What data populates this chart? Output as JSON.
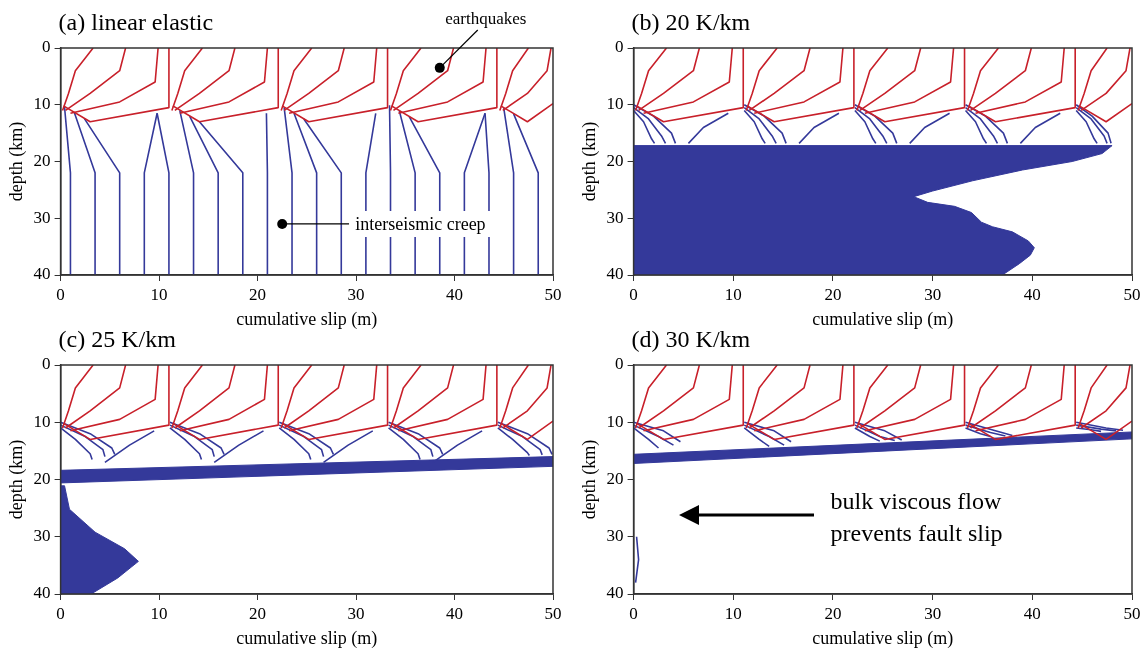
{
  "chart_data": [
    {
      "type": "line",
      "title": "(a) linear elastic",
      "xlabel": "cumulative slip (m)",
      "ylabel": "depth (km)",
      "xlim": [
        0,
        50
      ],
      "ylim": [
        40,
        0
      ],
      "xticks": [
        0,
        10,
        20,
        30,
        40,
        50
      ],
      "yticks": [
        0,
        10,
        20,
        30,
        40
      ],
      "grid": false,
      "legend": false,
      "marker": "none",
      "annotations": [
        {
          "text": "earthquakes",
          "x": 38.5,
          "y": 3.5
        },
        {
          "text": "interseismic creep",
          "x": 22.5,
          "y": 31
        }
      ],
      "series": [
        {
          "color": "#34399a",
          "x": [
            1,
            1,
            0.4
          ],
          "values": [
            40,
            22,
            10.4
          ]
        },
        {
          "color": "#34399a",
          "x": [
            3.5,
            3.5,
            1.4
          ],
          "values": [
            40,
            22,
            11.4
          ]
        },
        {
          "color": "#34399a",
          "x": [
            6,
            6,
            2.4
          ],
          "values": [
            40,
            22,
            12.4
          ]
        },
        {
          "color": "#34399a",
          "x": [
            8.5,
            8.5,
            9.8
          ],
          "values": [
            40,
            22,
            11.5
          ]
        },
        {
          "color": "#34399a",
          "x": [
            11,
            11,
            9.8
          ],
          "values": [
            40,
            22,
            11.5
          ]
        },
        {
          "color": "#34399a",
          "x": [
            13.5,
            13.5,
            12.1
          ],
          "values": [
            40,
            22,
            11
          ]
        },
        {
          "color": "#34399a",
          "x": [
            16,
            16,
            13.1
          ],
          "values": [
            40,
            22,
            12
          ]
        },
        {
          "color": "#34399a",
          "x": [
            18.5,
            18.5,
            14.1
          ],
          "values": [
            40,
            22,
            13
          ]
        },
        {
          "color": "#34399a",
          "x": [
            21,
            21,
            20.9
          ],
          "values": [
            40,
            22,
            11.5
          ]
        },
        {
          "color": "#34399a",
          "x": [
            23.5,
            23.5,
            22.7
          ],
          "values": [
            40,
            22,
            10.5
          ]
        },
        {
          "color": "#34399a",
          "x": [
            26,
            26,
            23.7
          ],
          "values": [
            40,
            22,
            11.5
          ]
        },
        {
          "color": "#34399a",
          "x": [
            28.5,
            28.5,
            24.7
          ],
          "values": [
            40,
            22,
            12.5
          ]
        },
        {
          "color": "#34399a",
          "x": [
            31,
            31,
            32
          ],
          "values": [
            40,
            22,
            11.5
          ]
        },
        {
          "color": "#34399a",
          "x": [
            33.5,
            33.5,
            33.4
          ],
          "values": [
            40,
            22,
            10.1
          ]
        },
        {
          "color": "#34399a",
          "x": [
            36,
            36,
            34.4
          ],
          "values": [
            40,
            22,
            11.1
          ]
        },
        {
          "color": "#34399a",
          "x": [
            38.5,
            38.5,
            35.4
          ],
          "values": [
            40,
            22,
            12.1
          ]
        },
        {
          "color": "#34399a",
          "x": [
            41,
            41,
            43.1
          ],
          "values": [
            40,
            22,
            11.5
          ]
        },
        {
          "color": "#34399a",
          "x": [
            43.5,
            43.5,
            43.1
          ],
          "values": [
            40,
            22,
            11.5
          ]
        },
        {
          "color": "#34399a",
          "x": [
            46,
            46,
            45
          ],
          "values": [
            40,
            22,
            10.6
          ]
        },
        {
          "color": "#34399a",
          "x": [
            48.5,
            48.5,
            46
          ],
          "values": [
            40,
            22,
            11.6
          ]
        },
        {
          "color": "#c8202a",
          "x": [
            3.3,
            1.5,
            0.8,
            0.2
          ],
          "values": [
            0,
            4,
            8,
            11
          ]
        },
        {
          "color": "#c8202a",
          "x": [
            6.6,
            6,
            3,
            0.5
          ],
          "values": [
            0,
            4,
            8,
            11
          ]
        },
        {
          "color": "#c8202a",
          "x": [
            9.9,
            9.6,
            6,
            1
          ],
          "values": [
            0,
            6,
            9.5,
            11.5
          ]
        },
        {
          "color": "#c8202a",
          "x": [
            11,
            11,
            3,
            0.3
          ],
          "values": [
            0,
            10.5,
            13,
            10.2
          ]
        },
        {
          "color": "#c8202a",
          "x": [
            14.4,
            12.6,
            11.9,
            11.3
          ],
          "values": [
            0,
            4,
            8,
            11
          ]
        },
        {
          "color": "#c8202a",
          "x": [
            17.7,
            17.1,
            14.1,
            11.6
          ],
          "values": [
            0,
            4,
            8,
            11
          ]
        },
        {
          "color": "#c8202a",
          "x": [
            21,
            20.7,
            17.1,
            12.1
          ],
          "values": [
            0,
            6,
            9.5,
            11.5
          ]
        },
        {
          "color": "#c8202a",
          "x": [
            22.1,
            22.1,
            14.1,
            11.4
          ],
          "values": [
            0,
            10.5,
            13,
            10.2
          ]
        },
        {
          "color": "#c8202a",
          "x": [
            25.5,
            23.7,
            23,
            22.4
          ],
          "values": [
            0,
            4,
            8,
            11
          ]
        },
        {
          "color": "#c8202a",
          "x": [
            28.8,
            28.2,
            25.2,
            22.7
          ],
          "values": [
            0,
            4,
            8,
            11
          ]
        },
        {
          "color": "#c8202a",
          "x": [
            32.1,
            31.8,
            28.2,
            23.2
          ],
          "values": [
            0,
            6,
            9.5,
            11.5
          ]
        },
        {
          "color": "#c8202a",
          "x": [
            33.2,
            33.2,
            25.2,
            22.5
          ],
          "values": [
            0,
            10.5,
            13,
            10.2
          ]
        },
        {
          "color": "#c8202a",
          "x": [
            36.6,
            34.8,
            34.1,
            33.5
          ],
          "values": [
            0,
            4,
            8,
            11
          ]
        },
        {
          "color": "#c8202a",
          "x": [
            39.9,
            39.3,
            36.3,
            33.8
          ],
          "values": [
            0,
            4,
            8,
            11
          ]
        },
        {
          "color": "#c8202a",
          "x": [
            43.2,
            42.9,
            39.3,
            34.3
          ],
          "values": [
            0,
            6,
            9.5,
            11.5
          ]
        },
        {
          "color": "#c8202a",
          "x": [
            44.3,
            44.3,
            36.3,
            33.6
          ],
          "values": [
            0,
            10.5,
            13,
            10.2
          ]
        },
        {
          "color": "#c8202a",
          "x": [
            47.5,
            45.9,
            45.2,
            44.6
          ],
          "values": [
            0,
            4,
            8,
            11
          ]
        },
        {
          "color": "#c8202a",
          "x": [
            49.8,
            49.4,
            47.4,
            44.9
          ],
          "values": [
            0,
            4,
            8,
            11
          ]
        },
        {
          "color": "#c8202a",
          "x": [
            50,
            47.4,
            44.7
          ],
          "values": [
            9.8,
            13,
            10.2
          ]
        }
      ]
    },
    {
      "type": "line",
      "title": "(b) 20 K/km",
      "xlabel": "cumulative slip (m)",
      "ylabel": "depth (km)",
      "xlim": [
        0,
        50
      ],
      "ylim": [
        40,
        0
      ],
      "xticks": [
        0,
        10,
        20,
        30,
        40,
        50
      ],
      "yticks": [
        0,
        10,
        20,
        30,
        40
      ],
      "grid": false,
      "legend": false,
      "marker": "none",
      "series": [
        {
          "type": "area",
          "color": "#34399a",
          "x": [
            0,
            48,
            47,
            44,
            39,
            34,
            30,
            28.1,
            29.5,
            32.2,
            33.9,
            34.9,
            36,
            38,
            39.6,
            40.2,
            39.8,
            38.7,
            37,
            0
          ],
          "values": [
            17.2,
            17.2,
            18.6,
            20,
            21.5,
            23.4,
            25.2,
            26.2,
            27.2,
            27.9,
            29,
            30.7,
            31.5,
            32.4,
            34,
            35.2,
            36.5,
            38,
            40,
            40
          ]
        },
        {
          "color": "#34399a",
          "x": [
            0,
            2,
            3.8,
            4.2
          ],
          "values": [
            10,
            12,
            15,
            16.8
          ]
        },
        {
          "color": "#34399a",
          "x": [
            0,
            1.5,
            2.8,
            3.2
          ],
          "values": [
            10.5,
            12.5,
            15.5,
            16.8
          ]
        },
        {
          "color": "#34399a",
          "x": [
            0,
            1,
            1.8,
            2.1
          ],
          "values": [
            11,
            13,
            16,
            16.8
          ]
        },
        {
          "color": "#34399a",
          "x": [
            11.1,
            13.1,
            14.9,
            15.3
          ],
          "values": [
            10,
            12,
            15,
            16.8
          ]
        },
        {
          "color": "#34399a",
          "x": [
            11.1,
            12.6,
            13.9,
            14.3
          ],
          "values": [
            10.5,
            12.5,
            15.5,
            16.8
          ]
        },
        {
          "color": "#34399a",
          "x": [
            11.1,
            12.1,
            12.9,
            13.2
          ],
          "values": [
            11,
            13,
            16,
            16.8
          ]
        },
        {
          "color": "#34399a",
          "x": [
            22.2,
            24.2,
            26,
            26.4
          ],
          "values": [
            10,
            12,
            15,
            16.8
          ]
        },
        {
          "color": "#34399a",
          "x": [
            22.2,
            23.7,
            25,
            25.4
          ],
          "values": [
            10.5,
            12.5,
            15.5,
            16.8
          ]
        },
        {
          "color": "#34399a",
          "x": [
            22.2,
            23.2,
            24,
            24.3
          ],
          "values": [
            11,
            13,
            16,
            16.8
          ]
        },
        {
          "color": "#34399a",
          "x": [
            33.3,
            35.3,
            37.1,
            37.5
          ],
          "values": [
            10,
            12,
            15,
            16.8
          ]
        },
        {
          "color": "#34399a",
          "x": [
            33.3,
            34.8,
            36.1,
            36.5
          ],
          "values": [
            10.5,
            12.5,
            15.5,
            16.8
          ]
        },
        {
          "color": "#34399a",
          "x": [
            33.3,
            34.3,
            35.1,
            35.4
          ],
          "values": [
            11,
            13,
            16,
            16.8
          ]
        },
        {
          "color": "#34399a",
          "x": [
            44.4,
            46,
            47.6,
            47.9
          ],
          "values": [
            10,
            12,
            15,
            16.8
          ]
        },
        {
          "color": "#34399a",
          "x": [
            44.4,
            45.9,
            47.2,
            47.5
          ],
          "values": [
            10.5,
            12.5,
            15.5,
            16.8
          ]
        },
        {
          "color": "#34399a",
          "x": [
            44.4,
            45.4,
            46.2,
            46.5
          ],
          "values": [
            11,
            13,
            16,
            16.8
          ]
        },
        {
          "color": "#34399a",
          "x": [
            9.5,
            7,
            5.5
          ],
          "values": [
            11.5,
            14,
            16.8
          ]
        },
        {
          "color": "#34399a",
          "x": [
            20.6,
            18.1,
            16.6
          ],
          "values": [
            11.5,
            14,
            16.8
          ]
        },
        {
          "color": "#34399a",
          "x": [
            31.7,
            29.2,
            27.7
          ],
          "values": [
            11.5,
            14,
            16.8
          ]
        },
        {
          "color": "#34399a",
          "x": [
            42.8,
            40.3,
            38.8
          ],
          "values": [
            11.5,
            14,
            16.8
          ]
        },
        {
          "color": "#c8202a",
          "x": [
            3.3,
            1.5,
            0.8,
            0.2
          ],
          "values": [
            0,
            4,
            8,
            11
          ]
        },
        {
          "color": "#c8202a",
          "x": [
            6.6,
            6,
            3,
            0.5
          ],
          "values": [
            0,
            4,
            8,
            11
          ]
        },
        {
          "color": "#c8202a",
          "x": [
            9.9,
            9.6,
            6,
            1
          ],
          "values": [
            0,
            6,
            9.5,
            11.5
          ]
        },
        {
          "color": "#c8202a",
          "x": [
            11,
            11,
            3,
            0.3
          ],
          "values": [
            0,
            10.5,
            13,
            10.2
          ]
        },
        {
          "color": "#c8202a",
          "x": [
            14.4,
            12.6,
            11.9,
            11.3
          ],
          "values": [
            0,
            4,
            8,
            11
          ]
        },
        {
          "color": "#c8202a",
          "x": [
            17.7,
            17.1,
            14.1,
            11.6
          ],
          "values": [
            0,
            4,
            8,
            11
          ]
        },
        {
          "color": "#c8202a",
          "x": [
            21,
            20.7,
            17.1,
            12.1
          ],
          "values": [
            0,
            6,
            9.5,
            11.5
          ]
        },
        {
          "color": "#c8202a",
          "x": [
            22.1,
            22.1,
            14.1,
            11.4
          ],
          "values": [
            0,
            10.5,
            13,
            10.2
          ]
        },
        {
          "color": "#c8202a",
          "x": [
            25.5,
            23.7,
            23,
            22.4
          ],
          "values": [
            0,
            4,
            8,
            11
          ]
        },
        {
          "color": "#c8202a",
          "x": [
            28.8,
            28.2,
            25.2,
            22.7
          ],
          "values": [
            0,
            4,
            8,
            11
          ]
        },
        {
          "color": "#c8202a",
          "x": [
            32.1,
            31.8,
            28.2,
            23.2
          ],
          "values": [
            0,
            6,
            9.5,
            11.5
          ]
        },
        {
          "color": "#c8202a",
          "x": [
            33.2,
            33.2,
            25.2,
            22.5
          ],
          "values": [
            0,
            10.5,
            13,
            10.2
          ]
        },
        {
          "color": "#c8202a",
          "x": [
            36.6,
            34.8,
            34.1,
            33.5
          ],
          "values": [
            0,
            4,
            8,
            11
          ]
        },
        {
          "color": "#c8202a",
          "x": [
            39.9,
            39.3,
            36.3,
            33.8
          ],
          "values": [
            0,
            4,
            8,
            11
          ]
        },
        {
          "color": "#c8202a",
          "x": [
            43.2,
            42.9,
            39.3,
            34.3
          ],
          "values": [
            0,
            6,
            9.5,
            11.5
          ]
        },
        {
          "color": "#c8202a",
          "x": [
            44.3,
            44.3,
            36.3,
            33.6
          ],
          "values": [
            0,
            10.5,
            13,
            10.2
          ]
        },
        {
          "color": "#c8202a",
          "x": [
            47.5,
            45.9,
            45.2,
            44.6
          ],
          "values": [
            0,
            4,
            8,
            11
          ]
        },
        {
          "color": "#c8202a",
          "x": [
            49.8,
            49.4,
            47.4,
            44.9
          ],
          "values": [
            0,
            4,
            8,
            11
          ]
        },
        {
          "color": "#c8202a",
          "x": [
            50,
            47.4,
            44.7
          ],
          "values": [
            9.8,
            13,
            10.2
          ]
        }
      ]
    },
    {
      "type": "line",
      "title": "(c) 25 K/km",
      "xlabel": "cumulative slip (m)",
      "ylabel": "depth (km)",
      "xlim": [
        0,
        50
      ],
      "ylim": [
        40,
        0
      ],
      "xticks": [
        0,
        10,
        20,
        30,
        40,
        50
      ],
      "yticks": [
        0,
        10,
        20,
        30,
        40
      ],
      "grid": false,
      "legend": false,
      "marker": "none",
      "series": [
        {
          "type": "area",
          "color": "#34399a",
          "x": [
            0,
            0.4,
            0.9,
            3.5,
            6.5,
            7.9,
            5.8,
            3.1,
            0
          ],
          "values": [
            21.1,
            21.1,
            25.2,
            29.2,
            32.1,
            34.3,
            37.2,
            40,
            40
          ]
        },
        {
          "type": "area",
          "color": "#34399a",
          "x": [
            0,
            50,
            50,
            0
          ],
          "values": [
            18.4,
            16,
            17.7,
            20.6
          ]
        },
        {
          "color": "#34399a",
          "x": [
            0,
            3,
            5.2,
            5.5
          ],
          "values": [
            10,
            12,
            14.5,
            15.6
          ]
        },
        {
          "color": "#34399a",
          "x": [
            0,
            2.5,
            4.3,
            4.5
          ],
          "values": [
            10.5,
            12.5,
            14.8,
            16
          ]
        },
        {
          "color": "#34399a",
          "x": [
            0,
            1.5,
            3,
            3.2
          ],
          "values": [
            11,
            13,
            15.5,
            16.5
          ]
        },
        {
          "color": "#34399a",
          "x": [
            11.1,
            14.1,
            16.3,
            16.6
          ],
          "values": [
            10,
            12,
            14.5,
            15.6
          ]
        },
        {
          "color": "#34399a",
          "x": [
            11.1,
            13.6,
            15.4,
            15.6
          ],
          "values": [
            10.5,
            12.5,
            14.8,
            16
          ]
        },
        {
          "color": "#34399a",
          "x": [
            11.1,
            12.6,
            14.1,
            14.3
          ],
          "values": [
            11,
            13,
            15.5,
            16.5
          ]
        },
        {
          "color": "#34399a",
          "x": [
            22.2,
            25.2,
            27.4,
            27.7
          ],
          "values": [
            10,
            12,
            14.5,
            15.6
          ]
        },
        {
          "color": "#34399a",
          "x": [
            22.2,
            24.7,
            26.5,
            26.7
          ],
          "values": [
            10.5,
            12.5,
            14.8,
            16
          ]
        },
        {
          "color": "#34399a",
          "x": [
            22.2,
            23.7,
            25.2,
            25.4
          ],
          "values": [
            11,
            13,
            15.5,
            16.5
          ]
        },
        {
          "color": "#34399a",
          "x": [
            33.3,
            36.3,
            38.5,
            38.8
          ],
          "values": [
            10,
            12,
            14.5,
            15.6
          ]
        },
        {
          "color": "#34399a",
          "x": [
            33.3,
            35.8,
            37.6,
            37.8
          ],
          "values": [
            10.5,
            12.5,
            14.8,
            16
          ]
        },
        {
          "color": "#34399a",
          "x": [
            33.3,
            34.8,
            36.3,
            36.5
          ],
          "values": [
            11,
            13,
            15.5,
            16.5
          ]
        },
        {
          "color": "#34399a",
          "x": [
            44.4,
            47.4,
            49.6,
            49.9
          ],
          "values": [
            10,
            12,
            14.5,
            15.6
          ]
        },
        {
          "color": "#34399a",
          "x": [
            44.4,
            46.9,
            48.7,
            48.9
          ],
          "values": [
            10.5,
            12.5,
            14.8,
            15.7
          ]
        },
        {
          "color": "#34399a",
          "x": [
            44.4,
            45.9,
            47.4,
            47.6
          ],
          "values": [
            11,
            13,
            15.3,
            15.8
          ]
        },
        {
          "color": "#34399a",
          "x": [
            9.5,
            7,
            4.5
          ],
          "values": [
            11.5,
            14,
            17
          ]
        },
        {
          "color": "#34399a",
          "x": [
            20.6,
            18.1,
            15.6
          ],
          "values": [
            11.5,
            14,
            17
          ]
        },
        {
          "color": "#34399a",
          "x": [
            31.7,
            29.2,
            26.7
          ],
          "values": [
            11.5,
            14,
            17
          ]
        },
        {
          "color": "#34399a",
          "x": [
            42.8,
            40.3,
            37.8
          ],
          "values": [
            11.5,
            14,
            17
          ]
        },
        {
          "color": "#c8202a",
          "x": [
            3.3,
            1.5,
            0.8,
            0.2
          ],
          "values": [
            0,
            4,
            8,
            11
          ]
        },
        {
          "color": "#c8202a",
          "x": [
            6.6,
            6,
            3,
            0.5
          ],
          "values": [
            0,
            4,
            8,
            11
          ]
        },
        {
          "color": "#c8202a",
          "x": [
            9.9,
            9.6,
            6,
            1
          ],
          "values": [
            0,
            6,
            9.5,
            11.5
          ]
        },
        {
          "color": "#c8202a",
          "x": [
            11,
            11,
            3,
            0.3
          ],
          "values": [
            0,
            10.5,
            13,
            10.2
          ]
        },
        {
          "color": "#c8202a",
          "x": [
            14.4,
            12.6,
            11.9,
            11.3
          ],
          "values": [
            0,
            4,
            8,
            11
          ]
        },
        {
          "color": "#c8202a",
          "x": [
            17.7,
            17.1,
            14.1,
            11.6
          ],
          "values": [
            0,
            4,
            8,
            11
          ]
        },
        {
          "color": "#c8202a",
          "x": [
            21,
            20.7,
            17.1,
            12.1
          ],
          "values": [
            0,
            6,
            9.5,
            11.5
          ]
        },
        {
          "color": "#c8202a",
          "x": [
            22.1,
            22.1,
            14.1,
            11.4
          ],
          "values": [
            0,
            10.5,
            13,
            10.2
          ]
        },
        {
          "color": "#c8202a",
          "x": [
            25.5,
            23.7,
            23,
            22.4
          ],
          "values": [
            0,
            4,
            8,
            11
          ]
        },
        {
          "color": "#c8202a",
          "x": [
            28.8,
            28.2,
            25.2,
            22.7
          ],
          "values": [
            0,
            4,
            8,
            11
          ]
        },
        {
          "color": "#c8202a",
          "x": [
            32.1,
            31.8,
            28.2,
            23.2
          ],
          "values": [
            0,
            6,
            9.5,
            11.5
          ]
        },
        {
          "color": "#c8202a",
          "x": [
            33.2,
            33.2,
            25.2,
            22.5
          ],
          "values": [
            0,
            10.5,
            13,
            10.2
          ]
        },
        {
          "color": "#c8202a",
          "x": [
            36.6,
            34.8,
            34.1,
            33.5
          ],
          "values": [
            0,
            4,
            8,
            11
          ]
        },
        {
          "color": "#c8202a",
          "x": [
            39.9,
            39.3,
            36.3,
            33.8
          ],
          "values": [
            0,
            4,
            8,
            11
          ]
        },
        {
          "color": "#c8202a",
          "x": [
            43.2,
            42.9,
            39.3,
            34.3
          ],
          "values": [
            0,
            6,
            9.5,
            11.5
          ]
        },
        {
          "color": "#c8202a",
          "x": [
            44.3,
            44.3,
            36.3,
            33.6
          ],
          "values": [
            0,
            10.5,
            13,
            10.2
          ]
        },
        {
          "color": "#c8202a",
          "x": [
            47.5,
            45.9,
            45.2,
            44.6
          ],
          "values": [
            0,
            4,
            8,
            11
          ]
        },
        {
          "color": "#c8202a",
          "x": [
            49.8,
            49.4,
            47.4,
            44.9
          ],
          "values": [
            0,
            4,
            8,
            11
          ]
        },
        {
          "color": "#c8202a",
          "x": [
            50,
            47.4,
            44.7
          ],
          "values": [
            9.8,
            13,
            10.2
          ]
        }
      ]
    },
    {
      "type": "line",
      "title": "(d) 30 K/km",
      "xlabel": "cumulative slip (m)",
      "ylabel": "depth (km)",
      "xlim": [
        0,
        50
      ],
      "ylim": [
        40,
        0
      ],
      "xticks": [
        0,
        10,
        20,
        30,
        40,
        50
      ],
      "yticks": [
        0,
        10,
        20,
        30,
        40
      ],
      "grid": false,
      "legend": false,
      "marker": "none",
      "annotations": [
        "bulk viscous flow\nprevents fault slip"
      ],
      "series": [
        {
          "type": "area",
          "color": "#34399a",
          "x": [
            0,
            50,
            50,
            0
          ],
          "values": [
            15.6,
            11.7,
            12.9,
            17.2
          ]
        },
        {
          "color": "#34399a",
          "x": [
            0,
            3,
            4.7
          ],
          "values": [
            10,
            11.5,
            13.4
          ]
        },
        {
          "color": "#34399a",
          "x": [
            0,
            2.5,
            4
          ],
          "values": [
            10.5,
            12.5,
            14
          ]
        },
        {
          "color": "#34399a",
          "x": [
            0,
            1.5,
            2.5
          ],
          "values": [
            11,
            13,
            14.5
          ]
        },
        {
          "color": "#34399a",
          "x": [
            11.1,
            14.1,
            15.8
          ],
          "values": [
            10,
            11.5,
            13.4
          ]
        },
        {
          "color": "#34399a",
          "x": [
            11.1,
            13.6,
            15.1
          ],
          "values": [
            10.5,
            12.5,
            14
          ]
        },
        {
          "color": "#34399a",
          "x": [
            11.1,
            12.6,
            13.6
          ],
          "values": [
            11,
            13,
            14.2
          ]
        },
        {
          "color": "#34399a",
          "x": [
            22.2,
            25.2,
            26.9
          ],
          "values": [
            10,
            11.5,
            13.1
          ]
        },
        {
          "color": "#34399a",
          "x": [
            22.2,
            24.7,
            26.2
          ],
          "values": [
            10.5,
            12.5,
            13.2
          ]
        },
        {
          "color": "#34399a",
          "x": [
            22.2,
            23.7,
            24.7
          ],
          "values": [
            11,
            12.5,
            13.3
          ]
        },
        {
          "color": "#34399a",
          "x": [
            33.3,
            36.3,
            38
          ],
          "values": [
            10,
            11.5,
            12.3
          ]
        },
        {
          "color": "#34399a",
          "x": [
            33.3,
            35.8,
            37.3
          ],
          "values": [
            10.5,
            11.8,
            12.4
          ]
        },
        {
          "color": "#34399a",
          "x": [
            33.3,
            34.8,
            35.8
          ],
          "values": [
            11,
            12,
            12.5
          ]
        },
        {
          "color": "#34399a",
          "x": [
            44.4,
            47.4,
            49.1
          ],
          "values": [
            10,
            11,
            11.4
          ]
        },
        {
          "color": "#34399a",
          "x": [
            44.4,
            46.9,
            48.4
          ],
          "values": [
            10.5,
            11.2,
            11.5
          ]
        },
        {
          "color": "#34399a",
          "x": [
            44.4,
            45.9,
            46.9
          ],
          "values": [
            11,
            11.3,
            11.6
          ]
        },
        {
          "color": "#34399a",
          "x": [
            0.3,
            0.5,
            0.2
          ],
          "values": [
            30,
            34,
            38
          ]
        },
        {
          "color": "#c8202a",
          "x": [
            3.3,
            1.5,
            0.8,
            0.2
          ],
          "values": [
            0,
            4,
            8,
            11
          ]
        },
        {
          "color": "#c8202a",
          "x": [
            6.6,
            6,
            3,
            0.5
          ],
          "values": [
            0,
            4,
            8,
            11
          ]
        },
        {
          "color": "#c8202a",
          "x": [
            9.9,
            9.6,
            6,
            1
          ],
          "values": [
            0,
            6,
            9.5,
            11.5
          ]
        },
        {
          "color": "#c8202a",
          "x": [
            11,
            11,
            3,
            0.3
          ],
          "values": [
            0,
            10.5,
            13,
            10.2
          ]
        },
        {
          "color": "#c8202a",
          "x": [
            14.4,
            12.6,
            11.9,
            11.3
          ],
          "values": [
            0,
            4,
            8,
            11
          ]
        },
        {
          "color": "#c8202a",
          "x": [
            17.7,
            17.1,
            14.1,
            11.6
          ],
          "values": [
            0,
            4,
            8,
            11
          ]
        },
        {
          "color": "#c8202a",
          "x": [
            21,
            20.7,
            17.1,
            12.1
          ],
          "values": [
            0,
            6,
            9.5,
            11.5
          ]
        },
        {
          "color": "#c8202a",
          "x": [
            22.1,
            22.1,
            14.1,
            11.4
          ],
          "values": [
            0,
            10.5,
            13,
            10.2
          ]
        },
        {
          "color": "#c8202a",
          "x": [
            25.5,
            23.7,
            23,
            22.4
          ],
          "values": [
            0,
            4,
            8,
            11
          ]
        },
        {
          "color": "#c8202a",
          "x": [
            28.8,
            28.2,
            25.2,
            22.7
          ],
          "values": [
            0,
            4,
            8,
            11
          ]
        },
        {
          "color": "#c8202a",
          "x": [
            32.1,
            31.8,
            28.2,
            23.2
          ],
          "values": [
            0,
            6,
            9.5,
            11.5
          ]
        },
        {
          "color": "#c8202a",
          "x": [
            33.2,
            33.2,
            25.2,
            22.5
          ],
          "values": [
            0,
            10.5,
            13,
            10.2
          ]
        },
        {
          "color": "#c8202a",
          "x": [
            36.6,
            34.8,
            34.1,
            33.5
          ],
          "values": [
            0,
            4,
            8,
            11
          ]
        },
        {
          "color": "#c8202a",
          "x": [
            39.9,
            39.3,
            36.3,
            33.8
          ],
          "values": [
            0,
            4,
            8,
            11
          ]
        },
        {
          "color": "#c8202a",
          "x": [
            43.2,
            42.9,
            39.3,
            34.3
          ],
          "values": [
            0,
            6,
            9.5,
            11.5
          ]
        },
        {
          "color": "#c8202a",
          "x": [
            44.3,
            44.3,
            36.3,
            33.6
          ],
          "values": [
            0,
            10.5,
            13,
            10.2
          ]
        },
        {
          "color": "#c8202a",
          "x": [
            47.5,
            45.9,
            45.2,
            44.6
          ],
          "values": [
            0,
            4,
            8,
            11
          ]
        },
        {
          "color": "#c8202a",
          "x": [
            49.8,
            49.4,
            47.4,
            44.9
          ],
          "values": [
            0,
            4,
            8,
            11
          ]
        },
        {
          "color": "#c8202a",
          "x": [
            50,
            47.4,
            44.7
          ],
          "values": [
            9.8,
            13,
            10.2
          ]
        }
      ]
    }
  ]
}
